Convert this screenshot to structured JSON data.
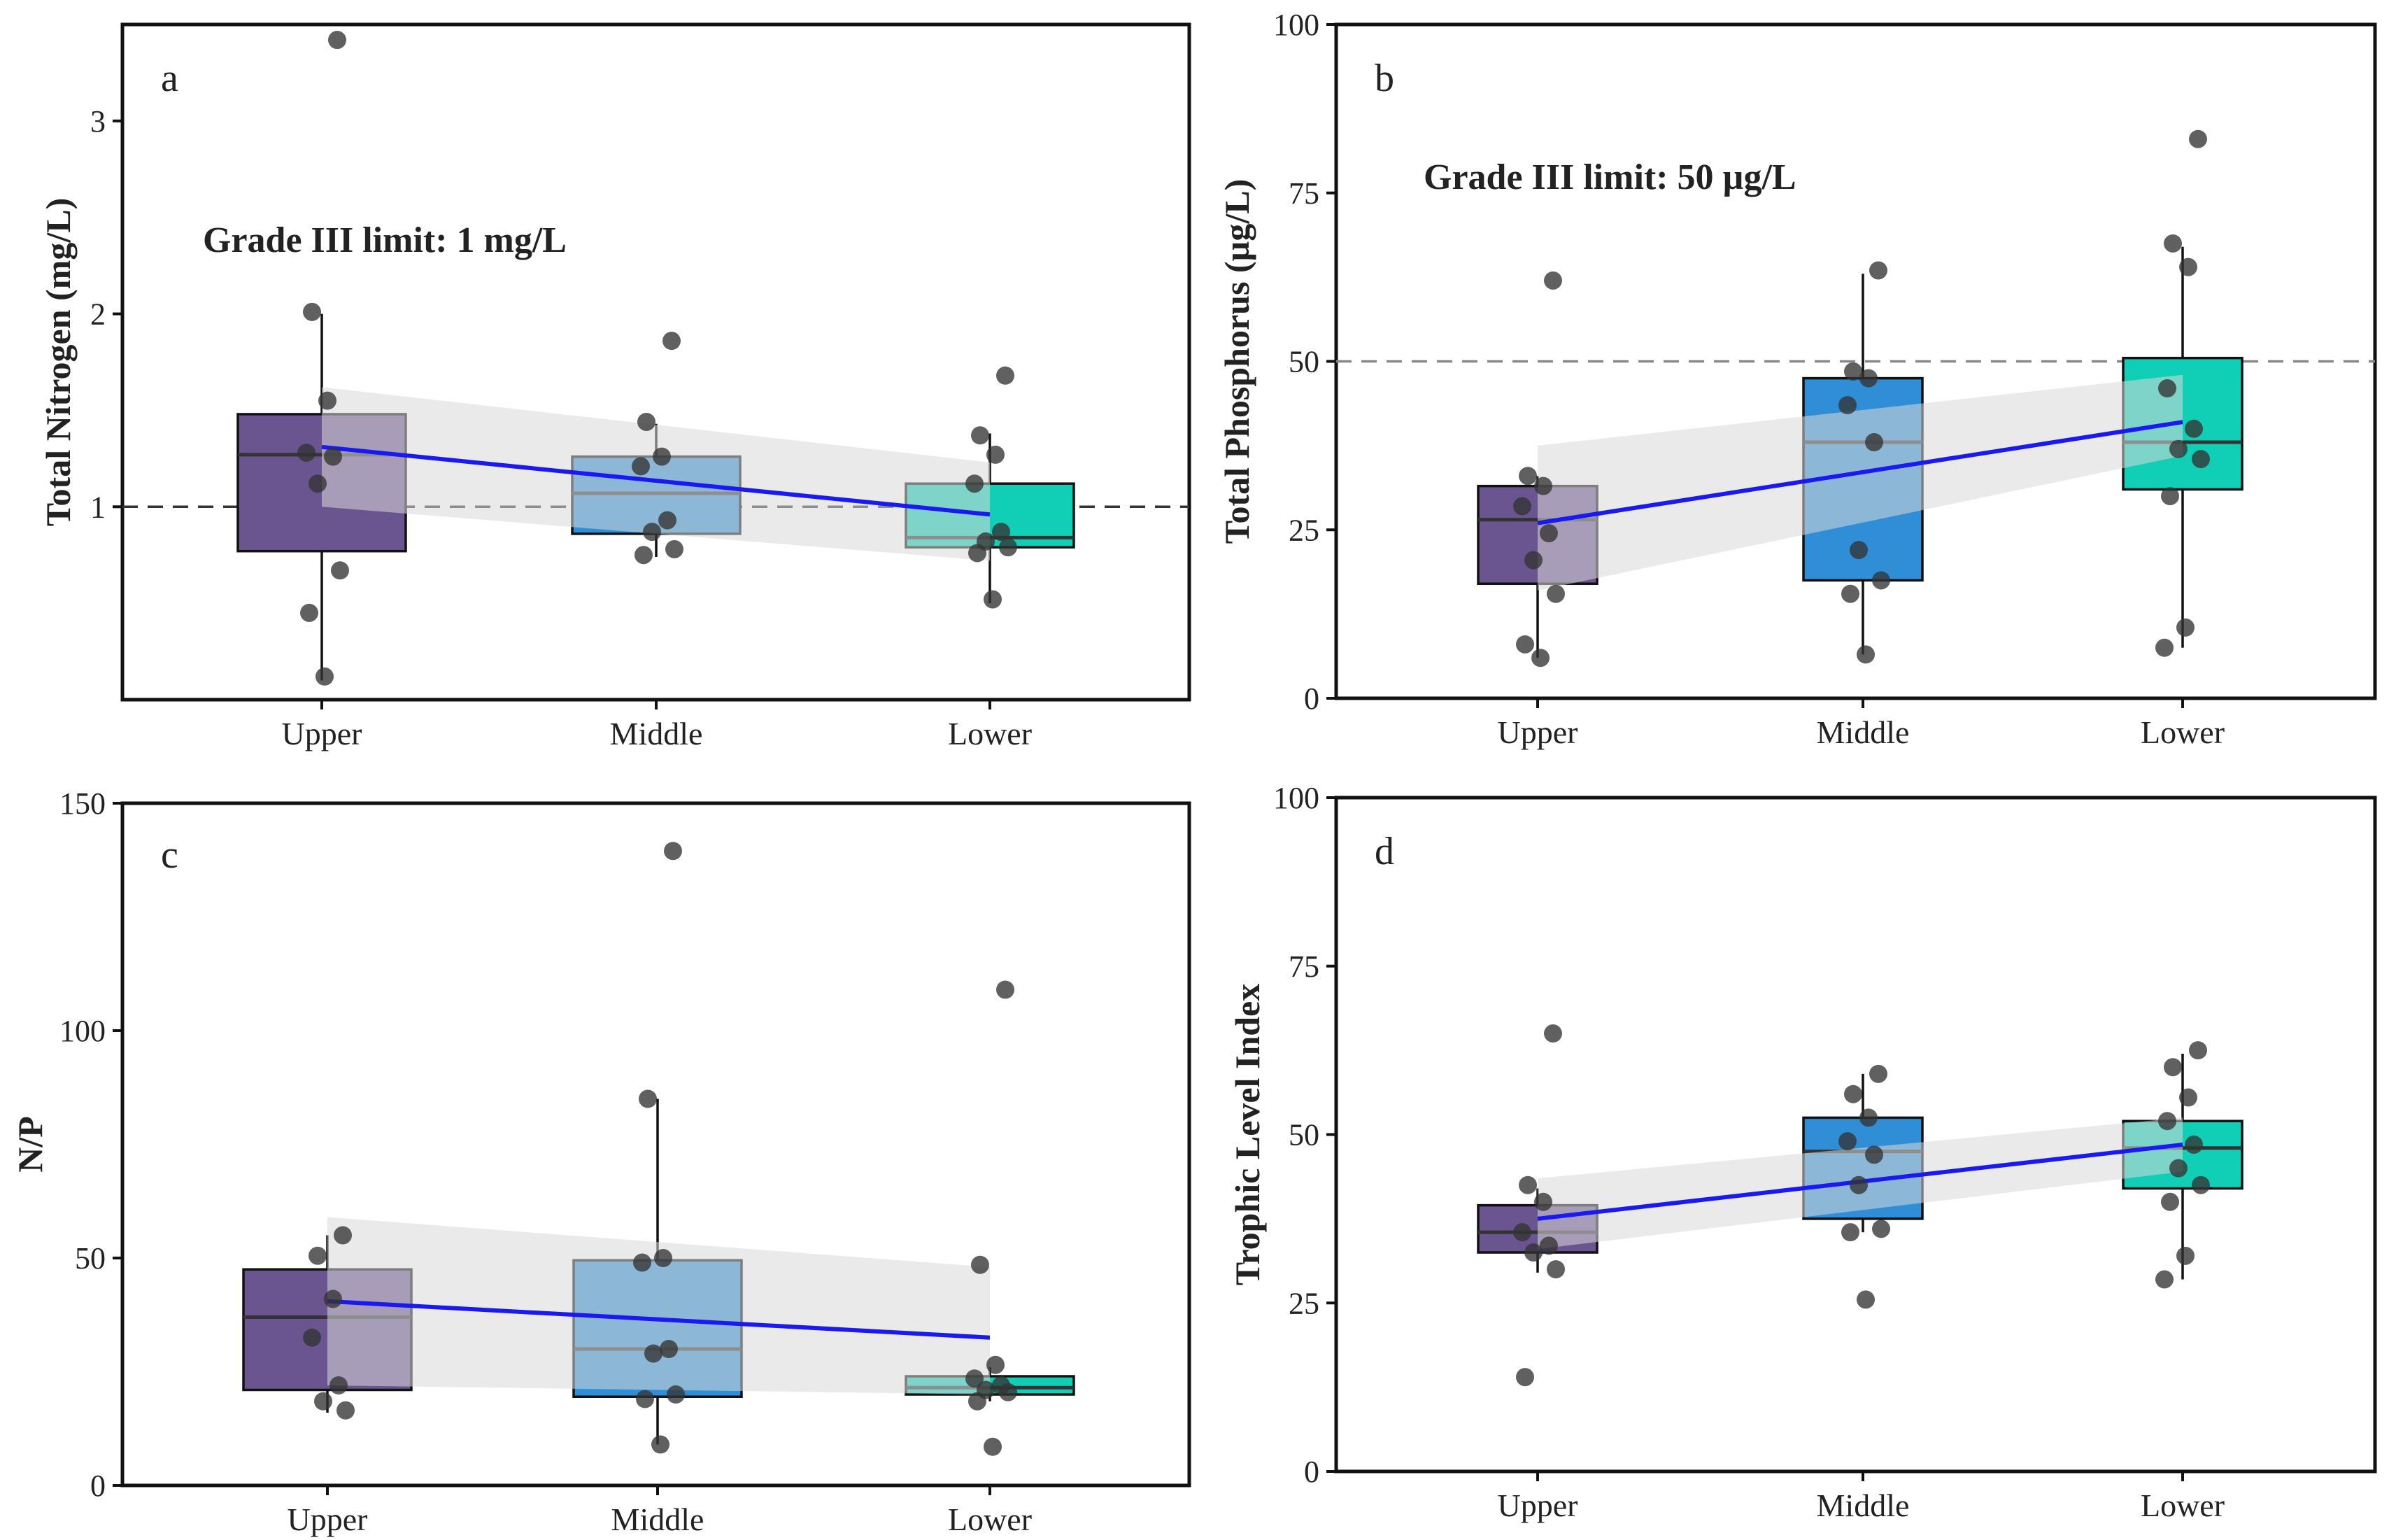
{
  "colors": {
    "upper": "#6b5590",
    "middle": "#2f8ed6",
    "lower": "#11cfb7",
    "trend": "#1a1af0",
    "limit_line": "#333333",
    "limit_line_b": "#888888"
  },
  "chart_data": [
    {
      "panel": "a",
      "type": "box",
      "categories": [
        "Upper",
        "Middle",
        "Lower"
      ],
      "ylabel": "Total Nitrogen (mg/L)",
      "ylim": [
        0,
        3.5
      ],
      "yticks": [
        1,
        2,
        3
      ],
      "grid": false,
      "annotation": "Grade III limit: 1 mg/L",
      "limit_value": 1,
      "boxes": [
        {
          "category": "Upper",
          "q1": 0.77,
          "median": 1.27,
          "q3": 1.48,
          "whisker_low": 0.1,
          "whisker_high": 2.0
        },
        {
          "category": "Middle",
          "q1": 0.86,
          "median": 1.07,
          "q3": 1.26,
          "whisker_low": 0.74,
          "whisker_high": 1.43
        },
        {
          "category": "Lower",
          "q1": 0.79,
          "median": 0.84,
          "q3": 1.12,
          "whisker_low": 0.5,
          "whisker_high": 1.38
        }
      ],
      "points": [
        {
          "category": "Upper",
          "values": [
            3.42,
            2.01,
            1.55,
            1.28,
            1.26,
            1.12,
            0.67,
            0.45,
            0.12
          ]
        },
        {
          "category": "Middle",
          "values": [
            1.86,
            1.44,
            1.26,
            1.21,
            0.93,
            0.87,
            0.78,
            0.75
          ]
        },
        {
          "category": "Lower",
          "values": [
            1.68,
            1.37,
            1.27,
            1.12,
            0.87,
            0.82,
            0.79,
            0.76,
            0.52
          ]
        }
      ],
      "trend": {
        "x": [
          "Upper",
          "Lower"
        ],
        "y": [
          1.31,
          0.96
        ],
        "band_lower": [
          1.0,
          0.72
        ],
        "band_upper": [
          1.62,
          1.23
        ]
      }
    },
    {
      "panel": "b",
      "type": "box",
      "categories": [
        "Upper",
        "Middle",
        "Lower"
      ],
      "ylabel": "Total Phosphorus (µg/L)",
      "ylim": [
        0,
        100
      ],
      "yticks": [
        0,
        25,
        50,
        75,
        100
      ],
      "grid": false,
      "annotation": "Grade III limit: 50 µg/L",
      "limit_value": 50,
      "boxes": [
        {
          "category": "Upper",
          "q1": 17,
          "median": 26.5,
          "q3": 31.5,
          "whisker_low": 6,
          "whisker_high": 33
        },
        {
          "category": "Middle",
          "q1": 17.5,
          "median": 38,
          "q3": 47.5,
          "whisker_low": 6.5,
          "whisker_high": 63
        },
        {
          "category": "Lower",
          "q1": 31,
          "median": 38,
          "q3": 50.5,
          "whisker_low": 7.5,
          "whisker_high": 67
        }
      ],
      "points": [
        {
          "category": "Upper",
          "values": [
            62,
            33,
            31.5,
            28.5,
            24.5,
            20.5,
            15.5,
            8,
            6
          ]
        },
        {
          "category": "Middle",
          "values": [
            63.5,
            48.5,
            47.5,
            43.5,
            38,
            22,
            17.5,
            15.5,
            6.5
          ]
        },
        {
          "category": "Lower",
          "values": [
            83,
            67.5,
            64,
            46,
            40,
            37,
            35.5,
            30,
            10.5,
            7.5
          ]
        }
      ],
      "trend": {
        "x": [
          "Upper",
          "Lower"
        ],
        "y": [
          26,
          41
        ],
        "band_lower": [
          16,
          36
        ],
        "band_upper": [
          37.5,
          48
        ]
      }
    },
    {
      "panel": "c",
      "type": "box",
      "categories": [
        "Upper",
        "Middle",
        "Lower"
      ],
      "ylabel": "N/P",
      "ylim": [
        0,
        150
      ],
      "yticks": [
        0,
        50,
        100,
        150
      ],
      "grid": false,
      "boxes": [
        {
          "category": "Upper",
          "q1": 21,
          "median": 37,
          "q3": 47.5,
          "whisker_low": 16,
          "whisker_high": 55
        },
        {
          "category": "Middle",
          "q1": 19.5,
          "median": 30,
          "q3": 49.5,
          "whisker_low": 9,
          "whisker_high": 85
        },
        {
          "category": "Lower",
          "q1": 20,
          "median": 21.5,
          "q3": 24,
          "whisker_low": 18.5,
          "whisker_high": 26
        }
      ],
      "points": [
        {
          "category": "Upper",
          "values": [
            55,
            50.5,
            41,
            32.5,
            22,
            18.5,
            16.5
          ]
        },
        {
          "category": "Middle",
          "values": [
            139.5,
            85,
            50,
            49,
            30,
            29,
            20,
            19,
            9
          ]
        },
        {
          "category": "Lower",
          "values": [
            109,
            48.5,
            26.5,
            23.5,
            22,
            21,
            20.5,
            18.5,
            8.5
          ]
        }
      ],
      "trend": {
        "x": [
          "Upper",
          "Lower"
        ],
        "y": [
          40.5,
          32.5
        ],
        "band_lower": [
          22,
          20
        ],
        "band_upper": [
          59,
          48
        ]
      }
    },
    {
      "panel": "d",
      "type": "box",
      "categories": [
        "Upper",
        "Middle",
        "Lower"
      ],
      "ylabel": "Trophic Level Index",
      "ylim": [
        0,
        100
      ],
      "yticks": [
        0,
        25,
        50,
        75,
        100
      ],
      "grid": false,
      "boxes": [
        {
          "category": "Upper",
          "q1": 32.5,
          "median": 35.5,
          "q3": 39.5,
          "whisker_low": 29.5,
          "whisker_high": 42
        },
        {
          "category": "Middle",
          "q1": 37.5,
          "median": 47.5,
          "q3": 52.5,
          "whisker_low": 35.5,
          "whisker_high": 59
        },
        {
          "category": "Lower",
          "q1": 42,
          "median": 48,
          "q3": 52,
          "whisker_low": 28.5,
          "whisker_high": 62
        }
      ],
      "points": [
        {
          "category": "Upper",
          "values": [
            65,
            42.5,
            40,
            35.5,
            33.5,
            32.5,
            30,
            14
          ]
        },
        {
          "category": "Middle",
          "values": [
            59,
            56,
            52.5,
            49,
            47,
            42.5,
            36,
            35.5,
            25.5
          ]
        },
        {
          "category": "Lower",
          "values": [
            62.5,
            60,
            55.5,
            52,
            48.5,
            45,
            42.5,
            40,
            32,
            28.5
          ]
        }
      ],
      "trend": {
        "x": [
          "Upper",
          "Lower"
        ],
        "y": [
          37.5,
          48.5
        ],
        "band_lower": [
          33,
          44.5
        ],
        "band_upper": [
          43.5,
          52.5
        ]
      }
    }
  ]
}
